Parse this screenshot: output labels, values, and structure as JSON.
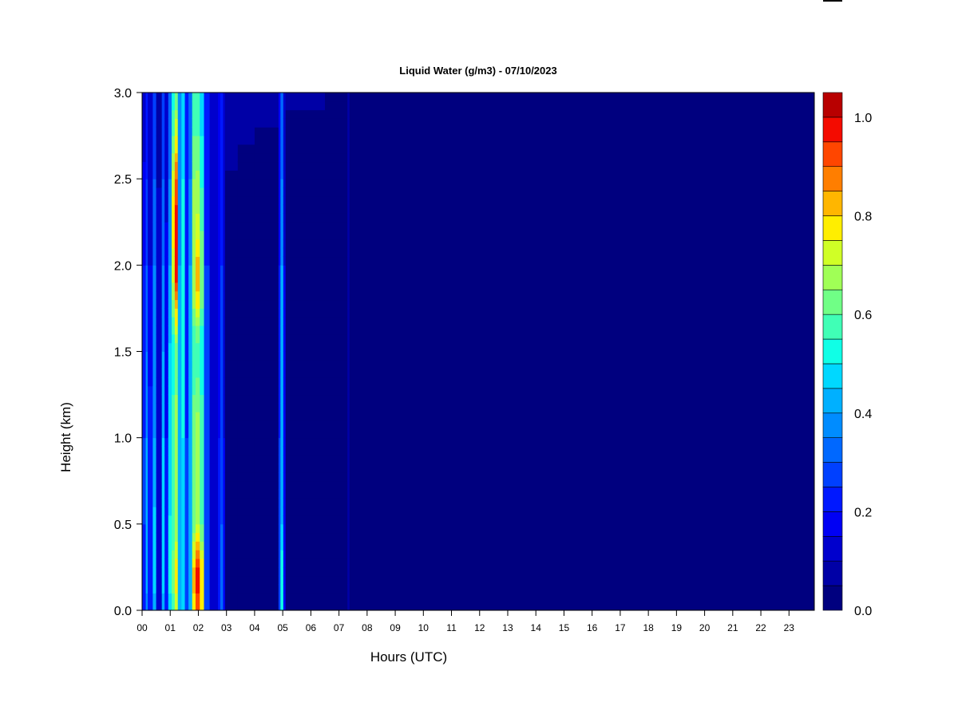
{
  "chart_data": {
    "type": "heatmap",
    "title": "Liquid Water (g/m3) - 07/10/2023",
    "xlabel": "Hours (UTC)",
    "ylabel": "Height (km)",
    "x_ticks": [
      "00",
      "01",
      "02",
      "03",
      "04",
      "05",
      "06",
      "07",
      "08",
      "09",
      "10",
      "11",
      "12",
      "13",
      "14",
      "15",
      "16",
      "17",
      "18",
      "19",
      "20",
      "21",
      "22",
      "23"
    ],
    "xlim": [
      0,
      23.9
    ],
    "y_ticks": [
      "0.0",
      "0.5",
      "1.0",
      "1.5",
      "2.0",
      "2.5",
      "3.0"
    ],
    "ylim": [
      0,
      3.0
    ],
    "colorbar": {
      "range": [
        0,
        1.05
      ],
      "ticks": [
        "0.0",
        "0.2",
        "0.4",
        "0.6",
        "0.8",
        "1.0"
      ],
      "levels": 21,
      "colors": [
        "#00007f",
        "#0000a6",
        "#0000cd",
        "#0000f4",
        "#0018ff",
        "#0040ff",
        "#0068ff",
        "#008cff",
        "#00b0ff",
        "#00d8ff",
        "#10ffe6",
        "#40ffb6",
        "#70ff86",
        "#a0ff56",
        "#d0ff26",
        "#ffee00",
        "#ffb600",
        "#ff7e00",
        "#ff4600",
        "#f40b00",
        "#b80000",
        "#7f0000"
      ]
    },
    "background_value": 0.0,
    "bands": [
      {
        "x0": 0.0,
        "x1": 0.13,
        "profile": [
          [
            0,
            0.2
          ],
          [
            0.5,
            0.25
          ],
          [
            1.0,
            0.25
          ],
          [
            2.0,
            0.2
          ],
          [
            3.0,
            0.12
          ]
        ]
      },
      {
        "x0": 0.13,
        "x1": 0.2,
        "profile": [
          [
            0,
            0.35
          ],
          [
            0.2,
            0.45
          ],
          [
            1.0,
            0.4
          ],
          [
            2.0,
            0.3
          ],
          [
            3.0,
            0.2
          ]
        ]
      },
      {
        "x0": 0.2,
        "x1": 0.38,
        "profile": [
          [
            0,
            0.22
          ],
          [
            1.0,
            0.22
          ],
          [
            2.0,
            0.15
          ],
          [
            3.0,
            0.1
          ]
        ]
      },
      {
        "x0": 0.38,
        "x1": 0.5,
        "profile": [
          [
            0,
            0.4
          ],
          [
            0.2,
            0.5
          ],
          [
            1.0,
            0.4
          ],
          [
            2.0,
            0.35
          ],
          [
            3.0,
            0.25
          ]
        ]
      },
      {
        "x0": 0.5,
        "x1": 0.7,
        "profile": [
          [
            0,
            0.15
          ],
          [
            1.0,
            0.15
          ],
          [
            3.0,
            0.08
          ]
        ]
      },
      {
        "x0": 0.7,
        "x1": 0.8,
        "profile": [
          [
            0,
            0.4
          ],
          [
            0.2,
            0.5
          ],
          [
            1.0,
            0.45
          ],
          [
            2.0,
            0.35
          ],
          [
            3.0,
            0.25
          ]
        ]
      },
      {
        "x0": 0.8,
        "x1": 0.93,
        "profile": [
          [
            0,
            0.2
          ],
          [
            1.0,
            0.2
          ],
          [
            3.0,
            0.12
          ]
        ]
      },
      {
        "x0": 0.93,
        "x1": 1.05,
        "profile": [
          [
            0,
            0.45
          ],
          [
            0.2,
            0.55
          ],
          [
            0.9,
            0.45
          ],
          [
            1.1,
            0.5
          ],
          [
            2.0,
            0.4
          ],
          [
            3.0,
            0.3
          ]
        ]
      },
      {
        "x0": 1.05,
        "x1": 1.16,
        "profile": [
          [
            0,
            0.55
          ],
          [
            0.2,
            0.65
          ],
          [
            0.5,
            0.55
          ],
          [
            1.0,
            0.6
          ],
          [
            1.5,
            0.5
          ],
          [
            1.9,
            0.7
          ],
          [
            2.3,
            0.8
          ],
          [
            3.0,
            0.5
          ]
        ]
      },
      {
        "x0": 1.16,
        "x1": 1.27,
        "profile": [
          [
            0,
            0.7
          ],
          [
            0.2,
            0.8
          ],
          [
            0.5,
            0.65
          ],
          [
            1.0,
            0.7
          ],
          [
            1.5,
            0.6
          ],
          [
            1.9,
            0.95
          ],
          [
            2.2,
            1.0
          ],
          [
            2.5,
            0.9
          ],
          [
            3.0,
            0.6
          ]
        ]
      },
      {
        "x0": 1.27,
        "x1": 1.4,
        "profile": [
          [
            0,
            0.4
          ],
          [
            0.5,
            0.4
          ],
          [
            1.0,
            0.45
          ],
          [
            2.0,
            0.4
          ],
          [
            3.0,
            0.35
          ]
        ]
      },
      {
        "x0": 1.4,
        "x1": 1.52,
        "profile": [
          [
            0,
            0.5
          ],
          [
            0.5,
            0.45
          ],
          [
            1.0,
            0.5
          ],
          [
            2.0,
            0.55
          ],
          [
            3.0,
            0.45
          ]
        ]
      },
      {
        "x0": 1.52,
        "x1": 1.65,
        "profile": [
          [
            0,
            0.25
          ],
          [
            1.0,
            0.25
          ],
          [
            3.0,
            0.2
          ]
        ]
      },
      {
        "x0": 1.65,
        "x1": 1.78,
        "profile": [
          [
            0,
            0.45
          ],
          [
            0.5,
            0.4
          ],
          [
            1.0,
            0.45
          ],
          [
            2.0,
            0.4
          ],
          [
            3.0,
            0.3
          ]
        ]
      },
      {
        "x0": 1.78,
        "x1": 1.9,
        "profile": [
          [
            0,
            0.75
          ],
          [
            0.2,
            0.85
          ],
          [
            0.5,
            0.6
          ],
          [
            1.0,
            0.65
          ],
          [
            1.5,
            0.55
          ],
          [
            1.9,
            0.7
          ],
          [
            2.5,
            0.65
          ],
          [
            3.0,
            0.55
          ]
        ]
      },
      {
        "x0": 1.9,
        "x1": 2.05,
        "profile": [
          [
            0,
            0.9
          ],
          [
            0.2,
            1.0
          ],
          [
            0.5,
            0.7
          ],
          [
            1.0,
            0.7
          ],
          [
            1.5,
            0.55
          ],
          [
            1.9,
            0.85
          ],
          [
            2.3,
            0.7
          ],
          [
            3.0,
            0.55
          ]
        ]
      },
      {
        "x0": 2.05,
        "x1": 2.2,
        "profile": [
          [
            0,
            0.75
          ],
          [
            0.2,
            0.8
          ],
          [
            0.5,
            0.6
          ],
          [
            1.0,
            0.6
          ],
          [
            1.5,
            0.5
          ],
          [
            1.9,
            0.65
          ],
          [
            3.0,
            0.45
          ]
        ]
      },
      {
        "x0": 2.2,
        "x1": 2.4,
        "profile": [
          [
            0,
            0.3
          ],
          [
            1.0,
            0.3
          ],
          [
            2.0,
            0.25
          ],
          [
            3.0,
            0.2
          ]
        ]
      },
      {
        "x0": 2.4,
        "x1": 2.7,
        "profile": [
          [
            0,
            0.12
          ],
          [
            1.5,
            0.1
          ],
          [
            3.0,
            0.1
          ]
        ]
      },
      {
        "x0": 2.7,
        "x1": 2.78,
        "profile": [
          [
            0,
            0.25
          ],
          [
            1.0,
            0.2
          ],
          [
            3.0,
            0.15
          ]
        ]
      },
      {
        "x0": 2.78,
        "x1": 2.88,
        "profile": [
          [
            0,
            0.35
          ],
          [
            0.5,
            0.3
          ],
          [
            1.0,
            0.3
          ],
          [
            2.0,
            0.25
          ],
          [
            3.0,
            0.2
          ]
        ]
      },
      {
        "x0": 2.88,
        "x1": 2.95,
        "profile": [
          [
            0,
            0.2
          ],
          [
            1.0,
            0.15
          ],
          [
            3.0,
            0.12
          ]
        ]
      },
      {
        "x0": 2.95,
        "x1": 3.4,
        "profile": [
          [
            0,
            0.03
          ],
          [
            2.5,
            0.04
          ],
          [
            2.7,
            0.08
          ],
          [
            3.0,
            0.1
          ]
        ]
      },
      {
        "x0": 3.4,
        "x1": 4.0,
        "profile": [
          [
            0,
            0.02
          ],
          [
            2.6,
            0.02
          ],
          [
            2.8,
            0.07
          ],
          [
            3.0,
            0.09
          ]
        ]
      },
      {
        "x0": 4.0,
        "x1": 4.85,
        "profile": [
          [
            0,
            0.02
          ],
          [
            2.7,
            0.02
          ],
          [
            2.85,
            0.07
          ],
          [
            3.0,
            0.09
          ]
        ]
      },
      {
        "x0": 4.85,
        "x1": 4.92,
        "profile": [
          [
            0,
            0.3
          ],
          [
            1.0,
            0.25
          ],
          [
            3.0,
            0.15
          ]
        ]
      },
      {
        "x0": 4.92,
        "x1": 5.02,
        "profile": [
          [
            0,
            0.5
          ],
          [
            0.2,
            0.55
          ],
          [
            0.5,
            0.45
          ],
          [
            1.0,
            0.4
          ],
          [
            2.0,
            0.4
          ],
          [
            3.0,
            0.3
          ]
        ]
      },
      {
        "x0": 5.02,
        "x1": 5.1,
        "profile": [
          [
            0,
            0.2
          ],
          [
            1.0,
            0.18
          ],
          [
            3.0,
            0.12
          ]
        ]
      },
      {
        "x0": 5.1,
        "x1": 6.5,
        "profile": [
          [
            0,
            0.02
          ],
          [
            2.8,
            0.02
          ],
          [
            2.9,
            0.05
          ],
          [
            3.0,
            0.07
          ]
        ]
      },
      {
        "x0": 6.5,
        "x1": 7.3,
        "profile": [
          [
            0,
            0.01
          ],
          [
            2.95,
            0.01
          ],
          [
            3.0,
            0.05
          ]
        ]
      },
      {
        "x0": 7.3,
        "x1": 7.36,
        "profile": [
          [
            0,
            0.08
          ],
          [
            3.0,
            0.08
          ]
        ]
      }
    ]
  }
}
